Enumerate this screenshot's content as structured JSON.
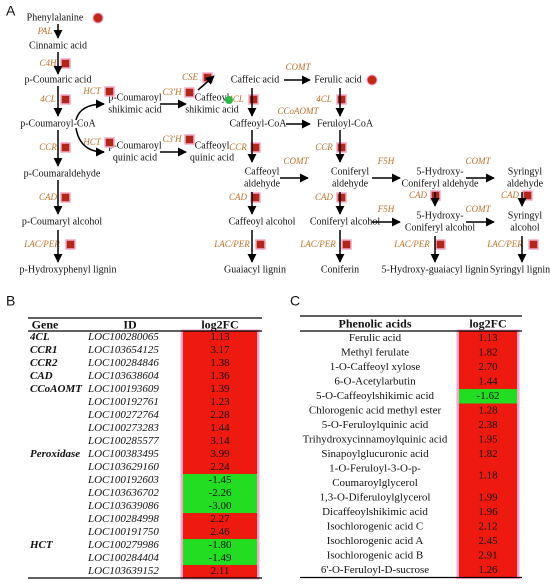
{
  "panel_a": {
    "label": "A",
    "compounds": [
      [
        "Phenylalanine"
      ],
      [
        "Cinnamic acid"
      ],
      [
        "p-Coumaric acid"
      ],
      [
        "p-Coumaroyl-CoA"
      ],
      [
        "p-Coumaroyl",
        "shikimic acid"
      ],
      [
        "Caffeoyl",
        "shikimic acid"
      ],
      [
        "Caffeic acid"
      ],
      [
        "Ferulic acid"
      ],
      [
        "Caffeoyl-CoA"
      ],
      [
        "Feruloyl-CoA"
      ],
      [
        "p-Coumaroyl",
        "quinic acid"
      ],
      [
        "Caffeoyl",
        "quinic acid"
      ],
      [
        "p-Coumaraldehyde"
      ],
      [
        "Caffeoyl",
        "aldehyde"
      ],
      [
        "Coniferyl",
        "aldehyde"
      ],
      [
        "5-Hydroxy-",
        "Coniferyl aldehyde"
      ],
      [
        "Syringyl",
        "aldehyde"
      ],
      [
        "p-Coumaryl alcohol"
      ],
      [
        "Caffeoyl alcohol"
      ],
      [
        "Coniferyl alcohol"
      ],
      [
        "5-Hydroxy-",
        "Coniferyl alcohol"
      ],
      [
        "Syringyl",
        "alcohol"
      ],
      [
        "p-Hydroxyphenyl lignin"
      ],
      [
        "Guaiacyl lignin"
      ],
      [
        "Coniferin"
      ],
      [
        "5-Hydroxy-guaiacyl lignin"
      ],
      [
        "Syringyl lignin"
      ]
    ],
    "enzymes": [
      "PAL",
      "C4H",
      "4CL",
      "HCT",
      "C3'H",
      "CSE",
      "COMT",
      "4CL",
      "4CL",
      "CCoAOMT",
      "HCT",
      "C3'H",
      "CCR",
      "CCR",
      "CCR",
      "COMT",
      "F5H",
      "COMT",
      "CAD",
      "CAD",
      "CAD",
      "CAD",
      "CAD",
      "F5H",
      "COMT",
      "LAC/PER",
      "LAC/PER",
      "LAC/PER",
      "LAC/PER",
      "LAC/PER"
    ]
  },
  "panel_b": {
    "label": "B",
    "header": [
      "Gene",
      "ID",
      "log2FC"
    ],
    "rows": [
      {
        "gene": "4CL",
        "id": "LOC100280065",
        "log2fc": "1.13"
      },
      {
        "gene": "CCR1",
        "id": "LOC103654125",
        "log2fc": "3.17"
      },
      {
        "gene": "CCR2",
        "id": "LOC100284846",
        "log2fc": "1.38"
      },
      {
        "gene": "CAD",
        "id": "LOC103638604",
        "log2fc": "1.36"
      },
      {
        "gene": "CCoAOMT",
        "id": "LOC100193609",
        "log2fc": "1.39"
      },
      {
        "id": "LOC100192761",
        "log2fc": "1.23"
      },
      {
        "id": "LOC100272764",
        "log2fc": "2.28"
      },
      {
        "id": "LOC100273283",
        "log2fc": "1.44"
      },
      {
        "id": "LOC100285577",
        "log2fc": "3.14"
      },
      {
        "gene": "Peroxidase",
        "id": "LOC100383495",
        "log2fc": "3.99"
      },
      {
        "id": "LOC103629160",
        "log2fc": "2.24"
      },
      {
        "id": "LOC100192603",
        "log2fc": "-1.45"
      },
      {
        "id": "LOC103636702",
        "log2fc": "-2.26"
      },
      {
        "id": "LOC103639086",
        "log2fc": "-3.00"
      },
      {
        "id": "LOC100284998",
        "log2fc": "2.27"
      },
      {
        "id": "LOC100191750",
        "log2fc": "2.46"
      },
      {
        "gene": "HCT",
        "id": "LOC100279986",
        "log2fc": "-1.80"
      },
      {
        "id": "LOC100284404",
        "log2fc": "-1.49"
      },
      {
        "id": "LOC103639152",
        "log2fc": "2.11"
      }
    ]
  },
  "panel_c": {
    "label": "C",
    "header": [
      "Phenolic acids",
      "log2FC"
    ],
    "rows": [
      {
        "name": [
          "Ferulic acid"
        ],
        "log2fc": "1.13"
      },
      {
        "name": [
          "Methyl ferulate"
        ],
        "log2fc": "1.82"
      },
      {
        "name": [
          "1-O-Caffeoyl xylose"
        ],
        "log2fc": "2.70"
      },
      {
        "name": [
          "6-O-Acetylarbutin"
        ],
        "log2fc": "1.44"
      },
      {
        "name": [
          "5-O-Caffeoylshikimic acid"
        ],
        "log2fc": "-1.62"
      },
      {
        "name": [
          "Chlorogenic acid methyl ester"
        ],
        "log2fc": "1.28"
      },
      {
        "name": [
          "5-O-Feruloylquinic acid"
        ],
        "log2fc": "2.38"
      },
      {
        "name": [
          "Trihydroxycinnamoylquinic acid"
        ],
        "log2fc": "1.95"
      },
      {
        "name": [
          "Sinapoylglucuronic acid"
        ],
        "log2fc": "1.82"
      },
      {
        "name": [
          "1-O-Feruloyl-3-O-p-",
          "Coumaroylglycerol"
        ],
        "log2fc": "1.18"
      },
      {
        "name": [
          "1,3-O-Diferuloylglycerol"
        ],
        "log2fc": "1.99"
      },
      {
        "name": [
          "Dicaffeoylshikimic acid"
        ],
        "log2fc": "1.96"
      },
      {
        "name": [
          "Isochlorogenic acid C"
        ],
        "log2fc": "2.12"
      },
      {
        "name": [
          "Isochlorogenic acid A"
        ],
        "log2fc": "2.45"
      },
      {
        "name": [
          "Isochlorogenic acid B"
        ],
        "log2fc": "2.91"
      },
      {
        "name": [
          "6'-O-Feruloyl-D-sucrose"
        ],
        "log2fc": "1.26"
      }
    ]
  }
}
